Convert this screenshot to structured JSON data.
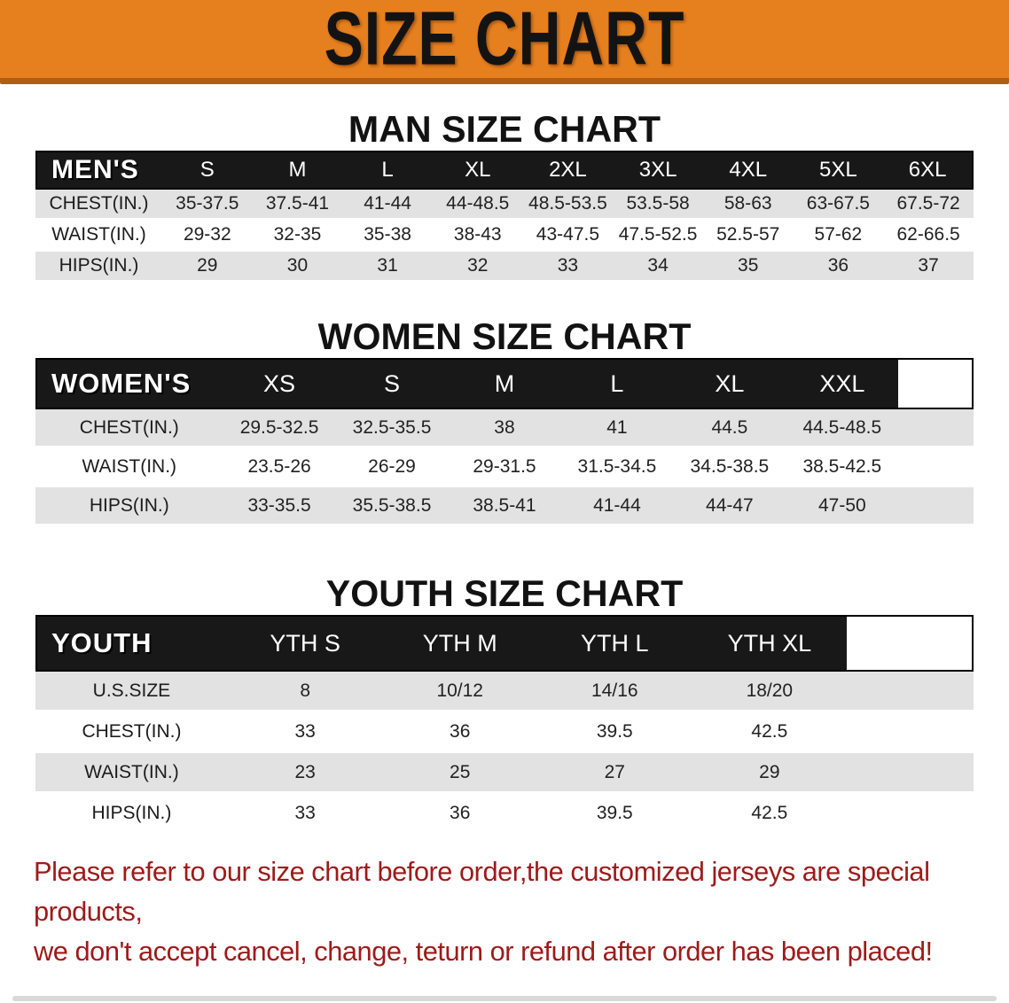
{
  "banner": {
    "title": "SIZE CHART"
  },
  "colors": {
    "banner_orange": "#E6801F",
    "banner_edge": "#B05F12",
    "header_black": "#181818",
    "stripe_gray": "#E2E2E2",
    "disclaimer_red": "#9E1A1A"
  },
  "sections": [
    {
      "heading": "MAN SIZE CHART",
      "table": {
        "corner": "MEN'S",
        "sizes": [
          "S",
          "M",
          "L",
          "XL",
          "2XL",
          "3XL",
          "4XL",
          "5XL",
          "6XL"
        ],
        "rows": [
          {
            "label": "CHEST(IN.)",
            "values": [
              "35-37.5",
              "37.5-41",
              "41-44",
              "44-48.5",
              "48.5-53.5",
              "53.5-58",
              "58-63",
              "63-67.5",
              "67.5-72"
            ]
          },
          {
            "label": "WAIST(IN.)",
            "values": [
              "29-32",
              "32-35",
              "35-38",
              "38-43",
              "43-47.5",
              "47.5-52.5",
              "52.5-57",
              "57-62",
              "62-66.5"
            ]
          },
          {
            "label": "HIPS(IN.)",
            "values": [
              "29",
              "30",
              "31",
              "32",
              "33",
              "34",
              "35",
              "36",
              "37"
            ]
          }
        ]
      }
    },
    {
      "heading": "WOMEN SIZE CHART",
      "table": {
        "corner": "WOMEN'S",
        "sizes": [
          "XS",
          "S",
          "M",
          "L",
          "XL",
          "XXL"
        ],
        "rows": [
          {
            "label": "CHEST(IN.)",
            "values": [
              "29.5-32.5",
              "32.5-35.5",
              "38",
              "41",
              "44.5",
              "44.5-48.5"
            ]
          },
          {
            "label": "WAIST(IN.)",
            "values": [
              "23.5-26",
              "26-29",
              "29-31.5",
              "31.5-34.5",
              "34.5-38.5",
              "38.5-42.5"
            ]
          },
          {
            "label": "HIPS(IN.)",
            "values": [
              "33-35.5",
              "35.5-38.5",
              "38.5-41",
              "41-44",
              "44-47",
              "47-50"
            ]
          }
        ]
      }
    },
    {
      "heading": "YOUTH SIZE CHART",
      "table": {
        "corner": "YOUTH",
        "sizes": [
          "YTH S",
          "YTH M",
          "YTH L",
          "YTH XL"
        ],
        "rows": [
          {
            "label": "U.S.SIZE",
            "values": [
              "8",
              "10/12",
              "14/16",
              "18/20"
            ]
          },
          {
            "label": "CHEST(IN.)",
            "values": [
              "33",
              "36",
              "39.5",
              "42.5"
            ]
          },
          {
            "label": "WAIST(IN.)",
            "values": [
              "23",
              "25",
              "27",
              "29"
            ]
          },
          {
            "label": "HIPS(IN.)",
            "values": [
              "33",
              "36",
              "39.5",
              "42.5"
            ]
          }
        ]
      }
    }
  ],
  "disclaimer": {
    "line1": "Please refer to our size chart before order,the customized jerseys are special products,",
    "line2": "we don't accept cancel, change, teturn or refund after order has been placed!"
  }
}
